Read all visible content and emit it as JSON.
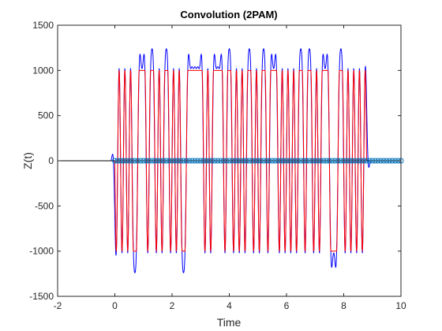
{
  "chart_data": {
    "type": "line",
    "title": "Convolution (2PAM)",
    "xlabel": "Time",
    "ylabel": "Z(t)",
    "xlim": [
      -2,
      10
    ],
    "ylim": [
      -1500,
      1500
    ],
    "xticks": [
      -2,
      0,
      2,
      4,
      6,
      8,
      10
    ],
    "yticks": [
      -1500,
      -1000,
      -500,
      0,
      500,
      1000,
      1500
    ],
    "xtick_labels": [
      "-2",
      "0",
      "2",
      "4",
      "6",
      "8",
      "10"
    ],
    "ytick_labels": [
      "-1500",
      "-1000",
      "-500",
      "0",
      "500",
      "1000",
      "1500"
    ],
    "grid": false,
    "box": true,
    "symbol_period": 0.1,
    "symbol_start": 0,
    "symbol_end": 8.8,
    "symbols": [
      -1,
      1,
      -1,
      1,
      -1,
      1,
      -1,
      -1,
      1,
      1,
      1,
      -1,
      1,
      1,
      -1,
      1,
      -1,
      1,
      1,
      -1,
      1,
      -1,
      1,
      -1,
      -1,
      1,
      1,
      1,
      1,
      1,
      1,
      -1,
      1,
      -1,
      1,
      1,
      1,
      1,
      -1,
      1,
      1,
      -1,
      1,
      -1,
      1,
      -1,
      1,
      1,
      -1,
      1,
      -1,
      1,
      1,
      -1,
      1,
      1,
      1,
      -1,
      1,
      -1,
      1,
      -1,
      1,
      -1,
      1,
      1,
      -1,
      1,
      1,
      -1,
      1,
      -1,
      1,
      1,
      1,
      -1,
      -1,
      -1,
      1,
      1,
      -1,
      1,
      -1,
      1,
      -1,
      1,
      -1,
      1
    ],
    "amplitude": 1000,
    "series": [
      {
        "role": "filtered",
        "color": "#0000FF",
        "line": "solid"
      },
      {
        "role": "ideal",
        "color": "#FF0000",
        "line": "solid"
      },
      {
        "role": "samples",
        "color": "#0072BD",
        "marker": "circle",
        "x_start": 0,
        "x_end": 10,
        "step": 0.1,
        "y": 0
      },
      {
        "role": "baseline",
        "color": "#000000",
        "line": "solid",
        "x": [
          -2,
          10
        ],
        "y": [
          0,
          0
        ]
      }
    ]
  }
}
